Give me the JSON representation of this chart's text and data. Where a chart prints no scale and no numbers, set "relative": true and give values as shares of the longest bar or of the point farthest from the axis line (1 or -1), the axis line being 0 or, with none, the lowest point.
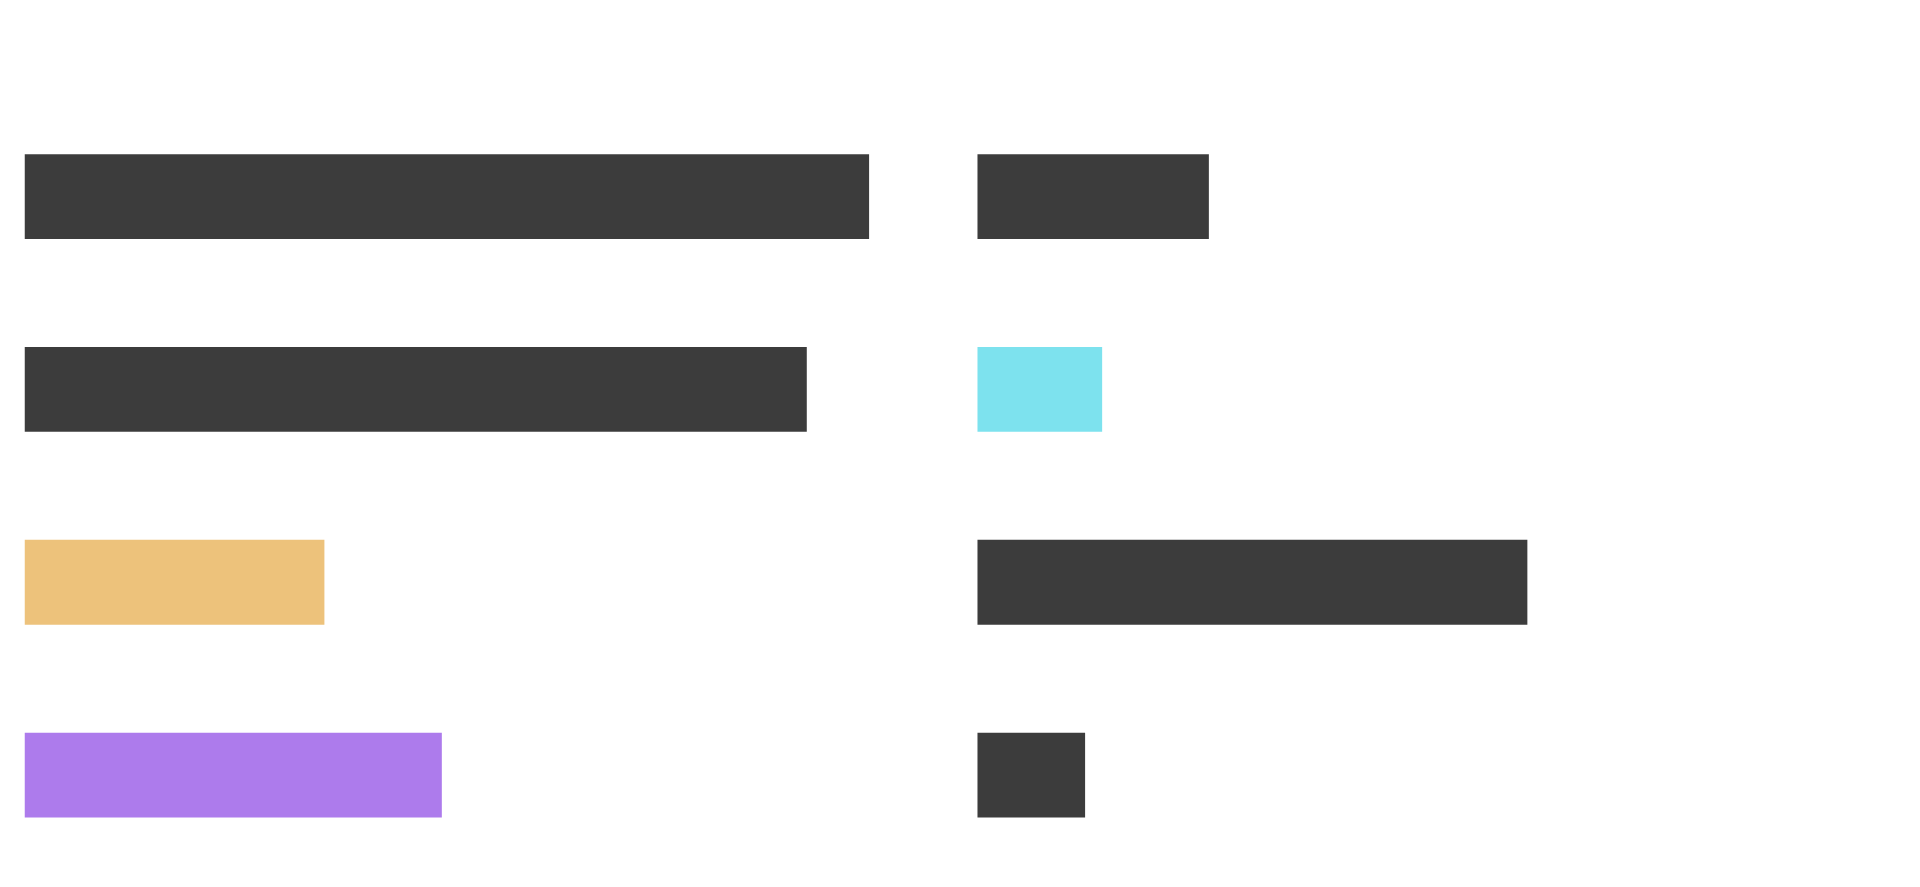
{
  "chart_data": [
    {
      "type": "bar",
      "orientation": "horizontal",
      "relative": true,
      "categories": [
        null,
        null,
        null,
        null
      ],
      "values": [
        1,
        0.926,
        0.355,
        0.494
      ],
      "colors": [
        "#3c3c3c",
        "#3c3c3c",
        "#edc27b",
        "#ad7bec"
      ],
      "grid": false,
      "legend": false
    },
    {
      "type": "bar",
      "orientation": "horizontal",
      "relative": true,
      "categories": [
        null,
        null,
        null,
        null
      ],
      "values": [
        0.421,
        0.227,
        1,
        0.196
      ],
      "colors": [
        "#3c3c3c",
        "#7de2ee",
        "#3c3c3c",
        "#3c3c3c"
      ],
      "grid": false,
      "legend": false
    }
  ]
}
